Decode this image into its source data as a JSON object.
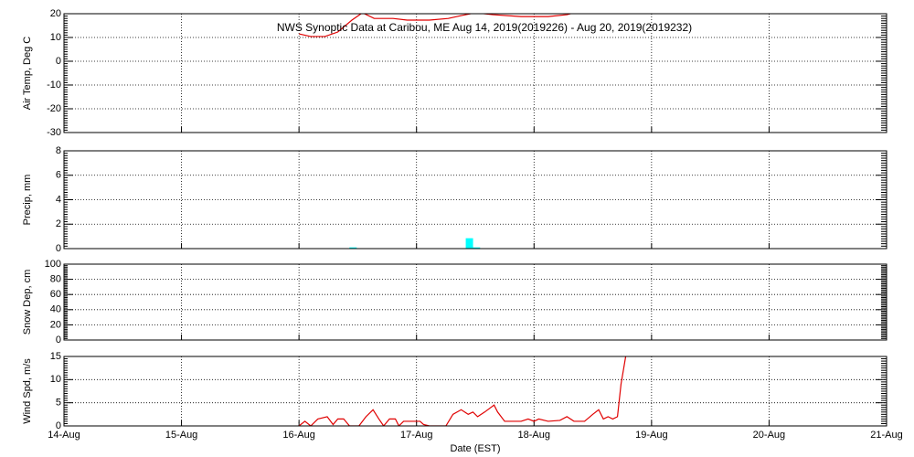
{
  "chart_data": [
    {
      "type": "line",
      "title": "NWS Synoptic Data at Caribou, ME   Aug 14, 2019(2019226) - Aug 20, 2019(2019232)",
      "ylabel": "Air Temp, Deg C",
      "xlim": [
        0,
        7
      ],
      "xticks": [
        0,
        1,
        2,
        3,
        4,
        5,
        6,
        7
      ],
      "ylim": [
        -30,
        20
      ],
      "yticks": [
        -30,
        -20,
        -10,
        0,
        10,
        20
      ],
      "grid": true,
      "series": [
        {
          "color": "#e00000",
          "x": [
            2.0,
            2.1,
            2.22,
            2.33,
            2.45,
            2.54,
            2.64,
            2.8,
            2.92,
            3.11,
            3.27,
            3.38,
            3.5,
            3.65,
            3.89,
            4.12,
            4.28,
            4.37
          ],
          "values": [
            11.5,
            10.4,
            10.4,
            12.3,
            17.3,
            20.4,
            18,
            18,
            17.3,
            17.3,
            18,
            19.2,
            20.4,
            19.6,
            18.8,
            18.8,
            19.6,
            20.8
          ]
        }
      ]
    },
    {
      "type": "bar",
      "ylabel": "Precip, mm",
      "xlim": [
        0,
        7
      ],
      "xticks": [
        0,
        1,
        2,
        3,
        4,
        5,
        6,
        7
      ],
      "ylim": [
        0,
        8
      ],
      "yticks": [
        0,
        2,
        4,
        6,
        8
      ],
      "grid": true,
      "series": [
        {
          "color": "#00ffff",
          "x": [
            2.46,
            3.45,
            3.51
          ],
          "values": [
            0.1,
            0.85,
            0.1
          ]
        }
      ]
    },
    {
      "type": "line",
      "ylabel": "Snow Dep, cm",
      "xlim": [
        0,
        7
      ],
      "xticks": [
        0,
        1,
        2,
        3,
        4,
        5,
        6,
        7
      ],
      "ylim": [
        0,
        100
      ],
      "yticks": [
        0,
        20,
        40,
        60,
        80,
        100
      ],
      "grid": true,
      "series": [
        {
          "color": "#e00000",
          "x": [],
          "values": []
        }
      ]
    },
    {
      "type": "line",
      "ylabel": "Wind Spd, m/s",
      "xlabel": "Date (EST)",
      "xlim": [
        0,
        7
      ],
      "xticks": [
        {
          "value": 0,
          "label": "14-Aug"
        },
        {
          "value": 1,
          "label": "15-Aug"
        },
        {
          "value": 2,
          "label": "16-Aug"
        },
        {
          "value": 3,
          "label": "17-Aug"
        },
        {
          "value": 4,
          "label": "18-Aug"
        },
        {
          "value": 5,
          "label": "19-Aug"
        },
        {
          "value": 6,
          "label": "20-Aug"
        },
        {
          "value": 7,
          "label": "21-Aug"
        }
      ],
      "ylim": [
        0,
        15
      ],
      "yticks": [
        0,
        5,
        10,
        15
      ],
      "grid": true,
      "series": [
        {
          "color": "#e00000",
          "x": [
            2.0,
            2.05,
            2.1,
            2.16,
            2.24,
            2.29,
            2.33,
            2.38,
            2.43,
            2.51,
            2.57,
            2.63,
            2.68,
            2.72,
            2.77,
            2.82,
            2.85,
            2.89,
            3.03,
            3.06,
            3.11,
            3.25,
            3.31,
            3.38,
            3.44,
            3.48,
            3.52,
            3.58,
            3.66,
            3.69,
            3.75,
            3.89,
            3.95,
            4.0,
            4.04,
            4.12,
            4.22,
            4.28,
            4.34,
            4.43,
            4.5,
            4.55,
            4.59,
            4.63,
            4.67,
            4.71,
            4.74,
            4.78
          ],
          "values": [
            0,
            1,
            0,
            1.5,
            2,
            0.3,
            1.5,
            1.5,
            0,
            0,
            2,
            3.5,
            1.5,
            0,
            1.5,
            1.5,
            0,
            1,
            1,
            0.3,
            0,
            0,
            2.5,
            3.5,
            2.5,
            3,
            2,
            3,
            4.5,
            3,
            1,
            1,
            1.5,
            1,
            1.5,
            1,
            1.2,
            2,
            1,
            1,
            2.5,
            3.5,
            1.5,
            2,
            1.5,
            2,
            9,
            15
          ]
        }
      ]
    }
  ]
}
